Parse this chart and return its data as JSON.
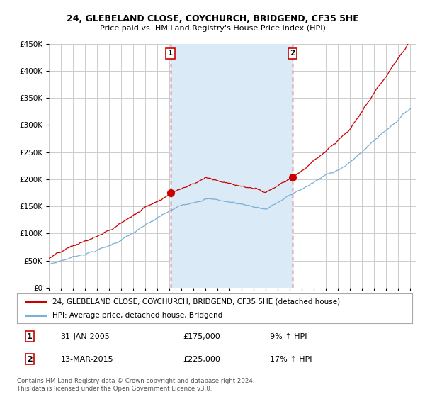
{
  "title1": "24, GLEBELAND CLOSE, COYCHURCH, BRIDGEND, CF35 5HE",
  "title2": "Price paid vs. HM Land Registry's House Price Index (HPI)",
  "ylim": [
    0,
    450000
  ],
  "yticks": [
    0,
    50000,
    100000,
    150000,
    200000,
    250000,
    300000,
    350000,
    400000,
    450000
  ],
  "ytick_labels": [
    "£0",
    "£50K",
    "£100K",
    "£150K",
    "£200K",
    "£250K",
    "£300K",
    "£350K",
    "£400K",
    "£450K"
  ],
  "transaction1_date": 2005.08,
  "transaction1_price": 175000,
  "transaction1_label": "1",
  "transaction1_text": "31-JAN-2005",
  "transaction1_value_text": "£175,000",
  "transaction1_pct_text": "9% ↑ HPI",
  "transaction2_date": 2015.2,
  "transaction2_price": 225000,
  "transaction2_label": "2",
  "transaction2_text": "13-MAR-2015",
  "transaction2_value_text": "£225,000",
  "transaction2_pct_text": "17% ↑ HPI",
  "red_line_color": "#cc0000",
  "blue_line_color": "#7bafd4",
  "shaded_region_color": "#daeaf7",
  "dashed_line_color": "#cc0000",
  "background_color": "#ffffff",
  "grid_color": "#cccccc",
  "legend_label1": "24, GLEBELAND CLOSE, COYCHURCH, BRIDGEND, CF35 5HE (detached house)",
  "legend_label2": "HPI: Average price, detached house, Bridgend",
  "footer1": "Contains HM Land Registry data © Crown copyright and database right 2024.",
  "footer2": "This data is licensed under the Open Government Licence v3.0."
}
